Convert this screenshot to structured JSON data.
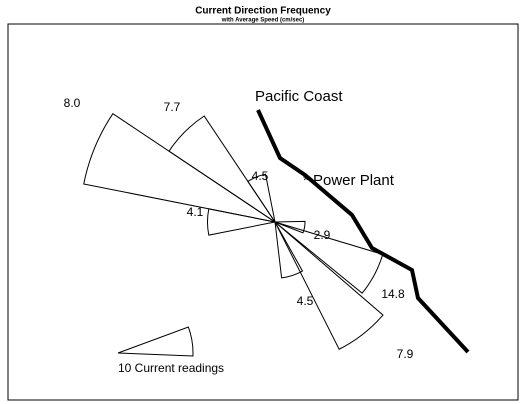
{
  "chart_data": {
    "type": "rose",
    "title": "Current Direction Frequency",
    "subtitle": "with Average Speed (cm/sec)",
    "directions": [
      292.5,
      315,
      337.5,
      270,
      100,
      118,
      142,
      162
    ],
    "counts": [
      26,
      17,
      6.5,
      9,
      4,
      15,
      19,
      7.5
    ],
    "speeds": [
      8.0,
      7.7,
      4.5,
      4.1,
      2.9,
      14.8,
      7.9,
      4.5
    ],
    "speed_labels": [
      "8.0",
      "7.7",
      "4.5",
      "4.1",
      "2.9",
      "14.8",
      "7.9",
      "4.5"
    ],
    "legend": {
      "count": 10,
      "label": "10 Current readings"
    },
    "annotations": [
      "Pacific Coast",
      "* Power Plant"
    ],
    "color": "#000000"
  }
}
